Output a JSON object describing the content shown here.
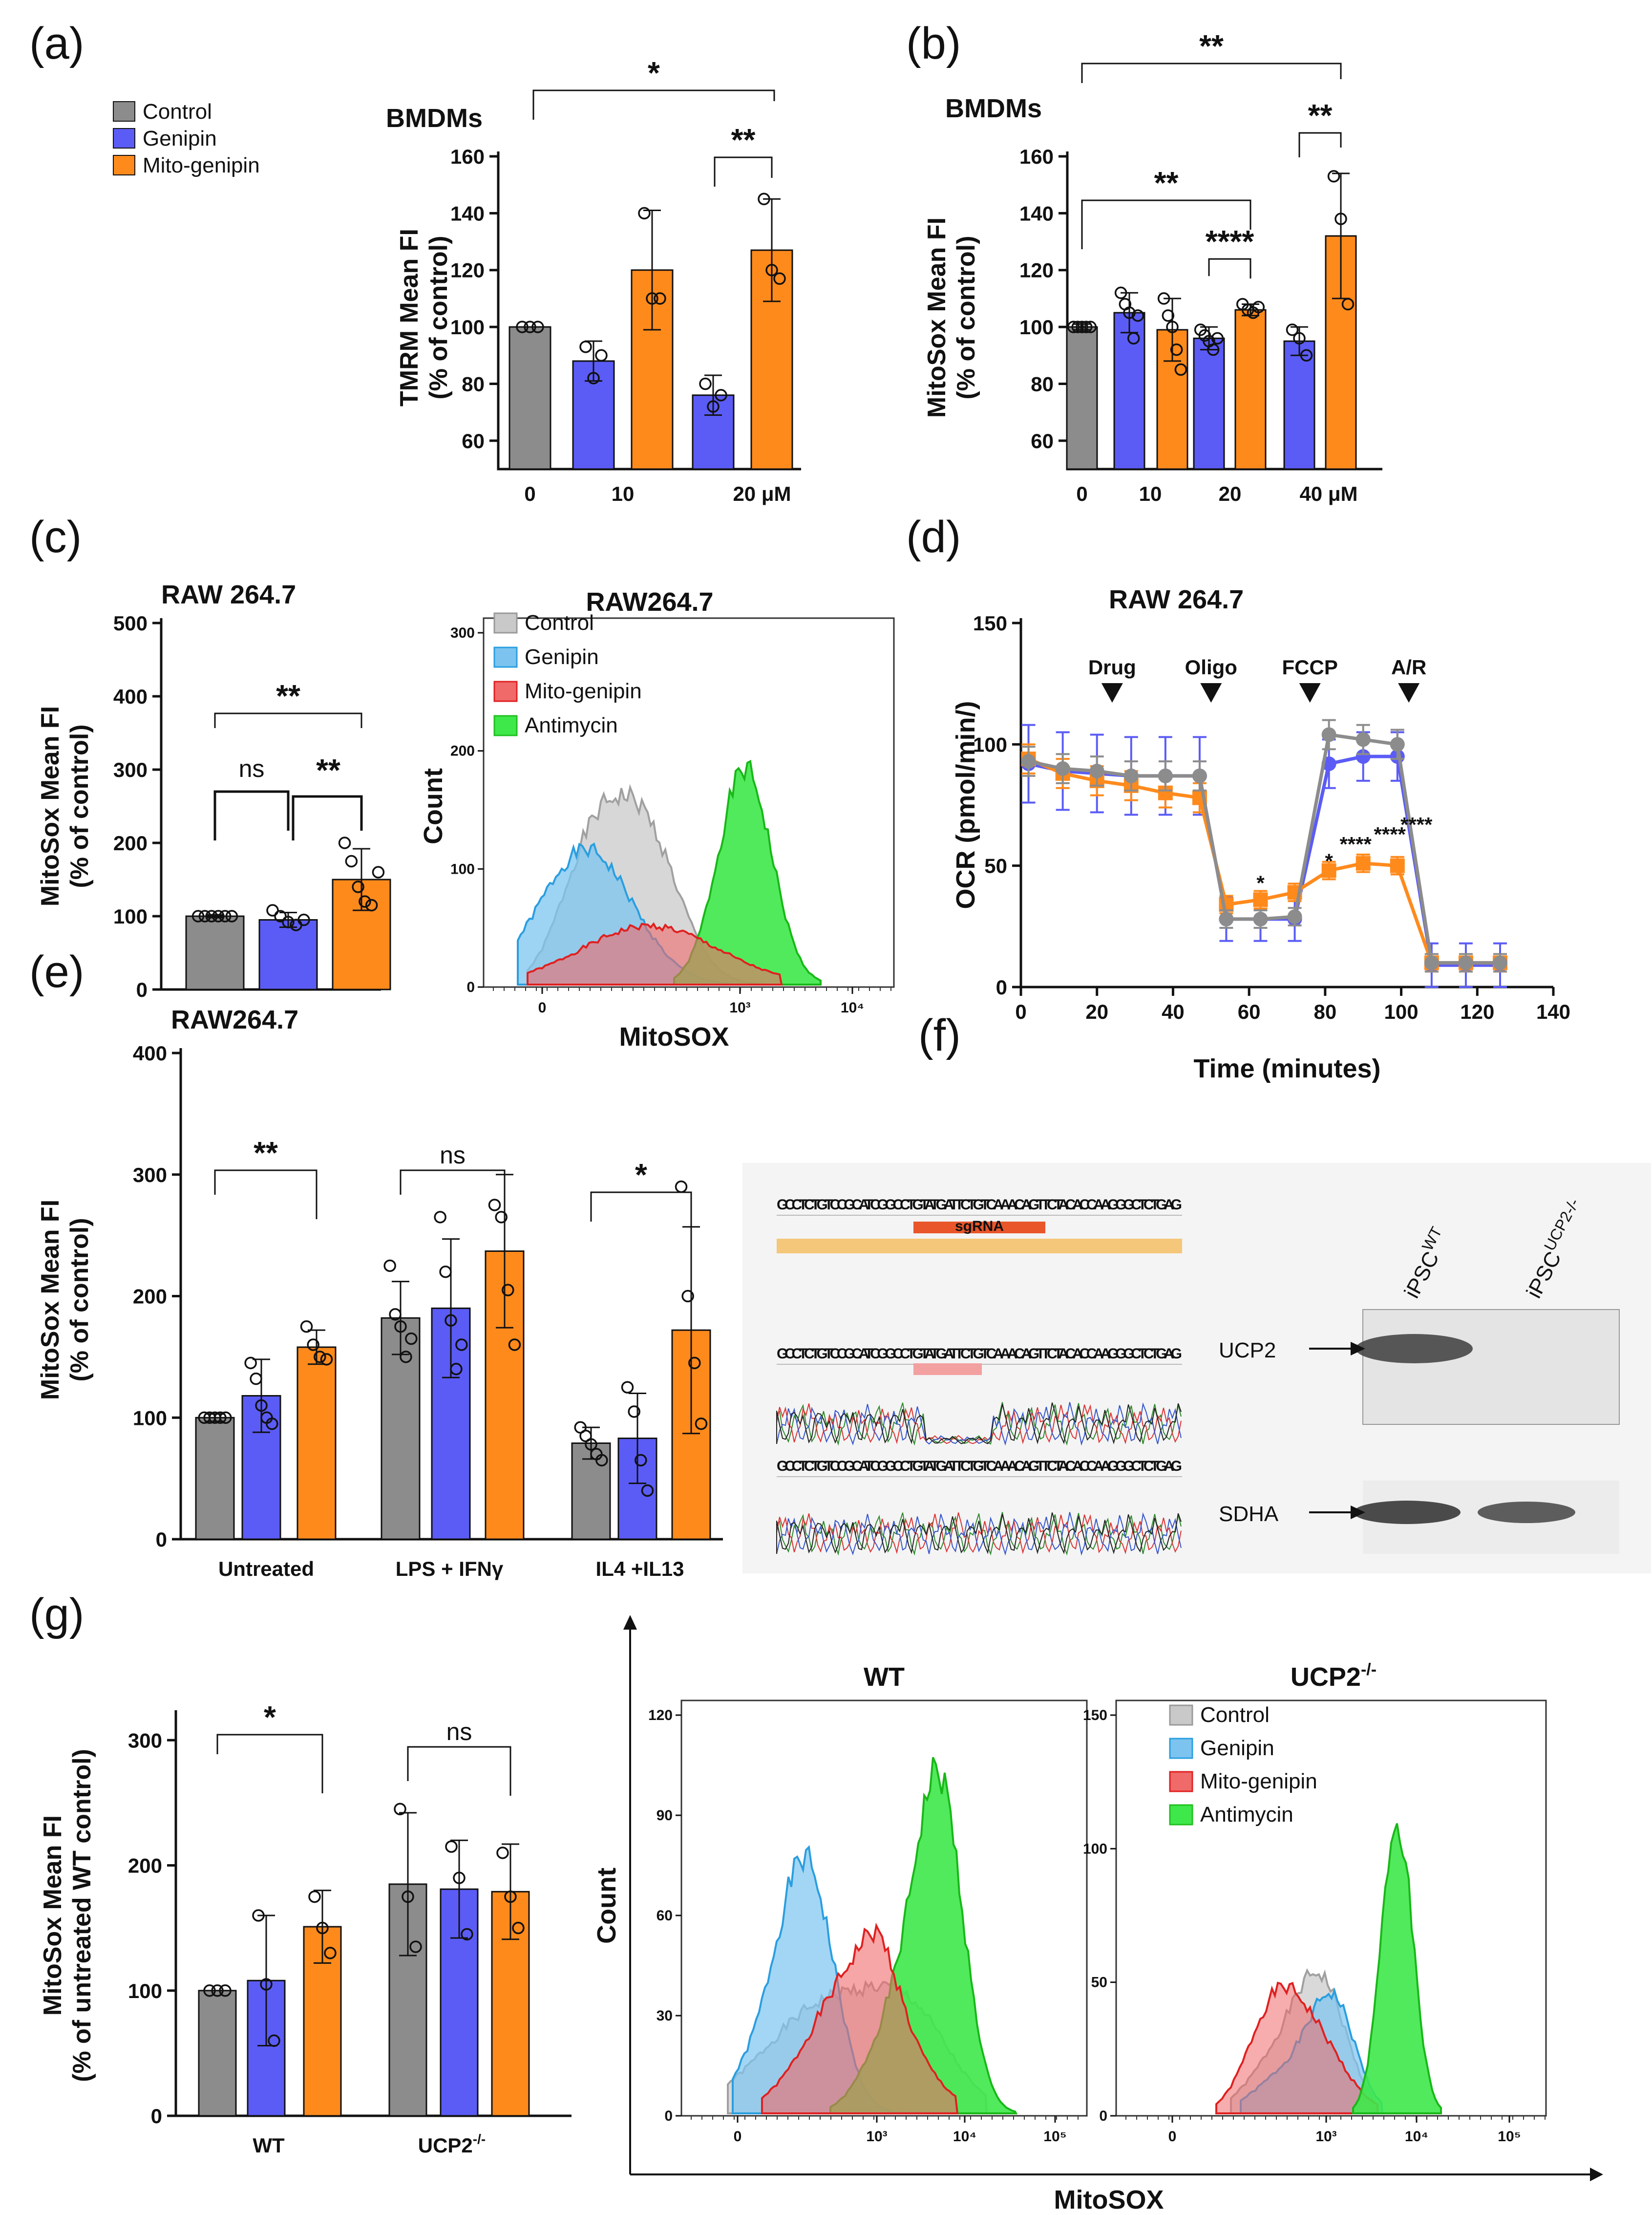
{
  "panel_labels": [
    "(a)",
    "(b)",
    "(c)",
    "(d)",
    "(e)",
    "(f)",
    "(g)"
  ],
  "colors": {
    "control": "#8c8c8c",
    "genipin": "#5b5cf5",
    "mito": "#ff8a1c",
    "h_control": "#c9c9c9",
    "h_genipin": "#7cc4ef",
    "h_mito": "#f06a6a",
    "h_anti": "#3ee84a"
  },
  "legend_a": [
    "Control",
    "Genipin",
    "Mito-genipin"
  ],
  "legend_hist": [
    "Control",
    "Genipin",
    "Mito-genipin",
    "Antimycin"
  ],
  "chart_data": [
    {
      "id": "a",
      "type": "bar",
      "title": "BMDMs",
      "ylabel": "TMRM Mean FI",
      "ylabel2": "(% of control)",
      "ylim": [
        50,
        160
      ],
      "yticks": [
        60,
        80,
        100,
        120,
        140,
        160
      ],
      "xtick_labels": [
        "0",
        "10",
        "20 μM"
      ],
      "bars": [
        {
          "series": "Control",
          "value": 100,
          "err": 0,
          "points": [
            100,
            100,
            100
          ]
        },
        {
          "series": "Genipin",
          "value": 88,
          "err": 7,
          "points": [
            93,
            82,
            90
          ]
        },
        {
          "series": "Mito-genipin",
          "value": 120,
          "err": 21,
          "points": [
            140,
            110,
            110
          ]
        },
        {
          "series": "Genipin",
          "value": 76,
          "err": 7,
          "points": [
            80,
            72,
            76
          ]
        },
        {
          "series": "Mito-genipin",
          "value": 127,
          "err": 18,
          "points": [
            145,
            120,
            117
          ]
        }
      ],
      "sig": [
        "*",
        "**"
      ]
    },
    {
      "id": "b",
      "type": "bar",
      "title": "BMDMs",
      "ylabel": "MitoSox Mean FI",
      "ylabel2": "(% of control)",
      "ylim": [
        50,
        160
      ],
      "yticks": [
        60,
        80,
        100,
        120,
        140,
        160
      ],
      "xtick_labels": [
        "0",
        "10",
        "20",
        "40 μM"
      ],
      "bars": [
        {
          "series": "Control",
          "value": 100,
          "err": 1,
          "points": [
            100,
            100,
            100,
            100,
            100
          ]
        },
        {
          "series": "Genipin",
          "value": 105,
          "err": 7,
          "points": [
            112,
            108,
            105,
            96,
            104
          ]
        },
        {
          "series": "Mito-genipin",
          "value": 99,
          "err": 11,
          "points": [
            110,
            104,
            100,
            92,
            85
          ]
        },
        {
          "series": "Genipin",
          "value": 96,
          "err": 4,
          "points": [
            99,
            97,
            95,
            92,
            96
          ]
        },
        {
          "series": "Mito-genipin",
          "value": 106,
          "err": 2,
          "points": [
            108,
            106,
            105,
            107
          ]
        },
        {
          "series": "Genipin",
          "value": 95,
          "err": 5,
          "points": [
            99,
            96,
            90
          ]
        },
        {
          "series": "Mito-genipin",
          "value": 132,
          "err": 22,
          "points": [
            153,
            138,
            108
          ]
        }
      ],
      "sig": [
        "**",
        "**",
        "**",
        "****"
      ]
    },
    {
      "id": "c",
      "type": "bar",
      "title": "RAW 264.7",
      "ylabel": "MitoSox Mean FI",
      "ylabel2": "(% of control)",
      "ylim": [
        0,
        500
      ],
      "yticks": [
        0,
        100,
        200,
        300,
        400,
        500
      ],
      "bars": [
        {
          "series": "Control",
          "value": 100,
          "err": 2,
          "points": [
            100,
            100,
            100,
            100,
            100,
            100
          ]
        },
        {
          "series": "Genipin",
          "value": 95,
          "err": 10,
          "points": [
            108,
            100,
            92,
            88,
            95
          ]
        },
        {
          "series": "Mito-genipin",
          "value": 150,
          "err": 42,
          "points": [
            200,
            175,
            140,
            120,
            115,
            160
          ]
        }
      ],
      "sig": [
        "**",
        "ns",
        "**"
      ]
    },
    {
      "id": "c_hist",
      "type": "area",
      "title": "RAW264.7",
      "xlabel": "MitoSOX",
      "ylabel": "Count",
      "yticks": [
        "0",
        "100",
        "200",
        "300"
      ],
      "xticks": [
        "0",
        "10³",
        "10⁴"
      ],
      "series": [
        "Control",
        "Genipin",
        "Mito-genipin",
        "Antimycin"
      ]
    },
    {
      "id": "d",
      "type": "line",
      "title": "RAW 264.7",
      "xlabel": "Time (minutes)",
      "ylabel": "OCR (pmol/min/)",
      "xlim": [
        0,
        140
      ],
      "ylim": [
        0,
        150
      ],
      "xticks": [
        0,
        20,
        40,
        60,
        80,
        100,
        120,
        140
      ],
      "yticks": [
        0,
        50,
        100,
        150
      ],
      "injections": [
        {
          "label": "Drug",
          "x": 24
        },
        {
          "label": "Oligo",
          "x": 50
        },
        {
          "label": "FCCP",
          "x": 76
        },
        {
          "label": "A/R",
          "x": 102
        }
      ],
      "x": [
        2,
        11,
        20,
        29,
        38,
        47,
        54,
        63,
        72,
        81,
        90,
        99,
        108,
        117,
        126
      ],
      "series": [
        {
          "name": "Control",
          "values": [
            93,
            90,
            89,
            87,
            87,
            87,
            28,
            28,
            29,
            104,
            102,
            100,
            10,
            10,
            10
          ],
          "err": 6
        },
        {
          "name": "Genipin",
          "values": [
            92,
            89,
            88,
            87,
            87,
            87,
            28,
            28,
            28,
            92,
            95,
            95,
            9,
            9,
            9
          ],
          "err": 15
        },
        {
          "name": "Mito-genipin",
          "values": [
            94,
            88,
            85,
            83,
            80,
            78,
            34,
            36,
            39,
            48,
            51,
            50,
            10,
            10,
            10
          ],
          "err": 6
        }
      ],
      "sig": [
        "*",
        "*",
        "****",
        "****",
        "****"
      ]
    },
    {
      "id": "e",
      "type": "bar",
      "title": "RAW264.7",
      "ylabel": "MitoSox Mean FI",
      "ylabel2": "(% of control)",
      "ylim": [
        0,
        400
      ],
      "yticks": [
        0,
        100,
        200,
        300,
        400
      ],
      "groups": [
        "Untreated",
        "LPS + IFNγ",
        "IL4 +IL13"
      ],
      "bars": [
        {
          "series": "Control",
          "value": 100,
          "err": 3,
          "points": [
            100,
            100,
            100,
            100,
            100
          ]
        },
        {
          "series": "Genipin",
          "value": 118,
          "err": 30,
          "points": [
            145,
            132,
            110,
            100,
            95
          ]
        },
        {
          "series": "Mito-genipin",
          "value": 158,
          "err": 14,
          "points": [
            175,
            160,
            150,
            148
          ]
        },
        {
          "series": "Control",
          "value": 182,
          "err": 30,
          "points": [
            225,
            185,
            175,
            150,
            165
          ]
        },
        {
          "series": "Genipin",
          "value": 190,
          "err": 57,
          "points": [
            265,
            220,
            180,
            140,
            160
          ]
        },
        {
          "series": "Mito-genipin",
          "value": 237,
          "err": 63,
          "points": [
            275,
            265,
            205,
            160
          ]
        },
        {
          "series": "Control",
          "value": 79,
          "err": 13,
          "points": [
            92,
            85,
            78,
            70,
            65
          ]
        },
        {
          "series": "Genipin",
          "value": 83,
          "err": 37,
          "points": [
            125,
            105,
            65,
            40
          ]
        },
        {
          "series": "Mito-genipin",
          "value": 172,
          "err": 85,
          "points": [
            290,
            200,
            145,
            95
          ]
        }
      ],
      "sig": [
        "**",
        "ns",
        "*"
      ]
    },
    {
      "id": "g",
      "type": "bar",
      "ylabel": "MitoSox Mean FI",
      "ylabel2": "(% of untreated WT control)",
      "ylim": [
        0,
        320
      ],
      "yticks": [
        0,
        100,
        200,
        300
      ],
      "groups": [
        "WT",
        "UCP2⁻/⁻"
      ],
      "bars": [
        {
          "series": "Control",
          "value": 100,
          "err": 0,
          "points": [
            100,
            100,
            100
          ]
        },
        {
          "series": "Genipin",
          "value": 108,
          "err": 52,
          "points": [
            160,
            105,
            60
          ]
        },
        {
          "series": "Mito-genipin",
          "value": 151,
          "err": 29,
          "points": [
            175,
            150,
            130
          ]
        },
        {
          "series": "Control",
          "value": 185,
          "err": 57,
          "points": [
            245,
            175,
            135
          ]
        },
        {
          "series": "Genipin",
          "value": 181,
          "err": 39,
          "points": [
            215,
            190,
            145
          ]
        },
        {
          "series": "Mito-genipin",
          "value": 179,
          "err": 38,
          "points": [
            210,
            175,
            150
          ]
        }
      ],
      "sig": [
        "*",
        "ns"
      ]
    },
    {
      "id": "g_hist_wt",
      "type": "area",
      "title": "WT",
      "ylabel": "Count",
      "yticks": [
        "0",
        "30",
        "60",
        "90",
        "120"
      ],
      "xticks": [
        "0",
        "10³",
        "10⁴",
        "10⁵"
      ]
    },
    {
      "id": "g_hist_ko",
      "type": "area",
      "title": "UCP2",
      "yticks": [
        "0",
        "50",
        "100",
        "150"
      ],
      "xticks": [
        "0",
        "10³",
        "10⁴",
        "10⁵"
      ],
      "xlabel": "MitoSOX"
    }
  ],
  "panel_f": {
    "lanes": [
      "iPSC",
      "iPSC"
    ],
    "lane_sup": [
      "WT",
      "UCP2-/-"
    ],
    "bands": [
      "UCP2",
      "SDHA"
    ],
    "seq": "GCCTCTGTCCGCATCGGCCTGTATGATTCTGTCAAACAGTTCTACACCAAGGGCTCTGAG",
    "sgRNA": "sgRNA"
  },
  "ucp2_title_sup": "-/-"
}
